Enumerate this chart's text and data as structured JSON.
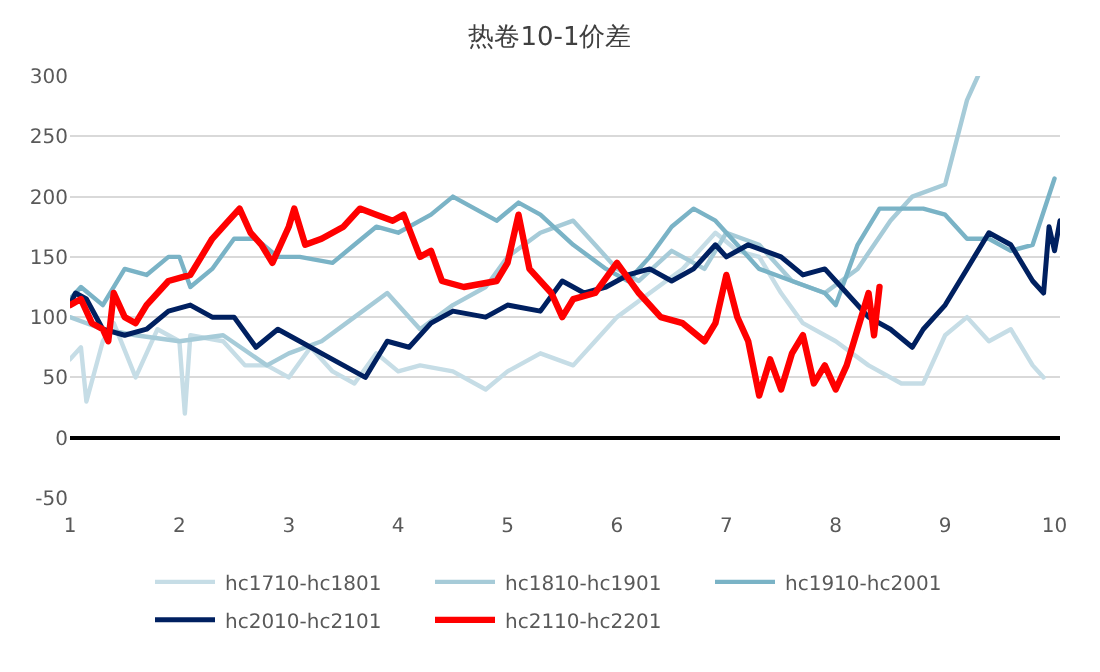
{
  "chart_data": {
    "type": "line",
    "title": "热卷10-1价差",
    "xlim": [
      1,
      10.05
    ],
    "xticks": [
      1,
      2,
      3,
      4,
      5,
      6,
      7,
      8,
      9,
      10
    ],
    "ylim": [
      -50,
      300
    ],
    "yticks": [
      -50,
      0,
      50,
      100,
      150,
      200,
      250,
      300
    ],
    "grid": "y",
    "legend": "bottom",
    "marker": "none",
    "line_style": "solid",
    "series": [
      {
        "name": "hc1710-hc1801",
        "color": "#c6dde6",
        "x": [
          1.0,
          1.1,
          1.15,
          1.3,
          1.4,
          1.6,
          1.8,
          2.0,
          2.05,
          2.1,
          2.4,
          2.6,
          2.8,
          3.0,
          3.2,
          3.4,
          3.6,
          3.8,
          4.0,
          4.2,
          4.5,
          4.8,
          5.0,
          5.3,
          5.6,
          5.8,
          6.0,
          6.3,
          6.6,
          6.9,
          7.1,
          7.3,
          7.5,
          7.7,
          8.0,
          8.3,
          8.6,
          8.8,
          9.0,
          9.2,
          9.4,
          9.6,
          9.8,
          9.9
        ],
        "values": [
          65,
          75,
          30,
          80,
          95,
          50,
          90,
          80,
          20,
          85,
          80,
          60,
          60,
          50,
          75,
          55,
          45,
          70,
          55,
          60,
          55,
          40,
          55,
          70,
          60,
          80,
          100,
          120,
          140,
          170,
          155,
          150,
          120,
          95,
          80,
          60,
          45,
          45,
          85,
          100,
          80,
          90,
          60,
          50
        ]
      },
      {
        "name": "hc1810-hc1901",
        "color": "#a6cbd8",
        "x": [
          1.0,
          1.3,
          1.6,
          2.0,
          2.4,
          2.8,
          3.0,
          3.3,
          3.6,
          3.9,
          4.2,
          4.5,
          4.8,
          5.0,
          5.3,
          5.6,
          5.8,
          6.0,
          6.2,
          6.5,
          6.8,
          7.0,
          7.3,
          7.6,
          7.9,
          8.2,
          8.5,
          8.7,
          9.0,
          9.2,
          9.3
        ],
        "values": [
          100,
          90,
          85,
          80,
          85,
          60,
          70,
          80,
          100,
          120,
          90,
          110,
          125,
          150,
          170,
          180,
          160,
          140,
          130,
          155,
          140,
          170,
          160,
          130,
          120,
          140,
          180,
          200,
          210,
          280,
          300
        ]
      },
      {
        "name": "hc1910-hc2001",
        "color": "#7ab3c6",
        "x": [
          1.0,
          1.1,
          1.3,
          1.5,
          1.7,
          1.9,
          2.0,
          2.1,
          2.3,
          2.5,
          2.7,
          2.9,
          3.1,
          3.4,
          3.6,
          3.8,
          4.0,
          4.3,
          4.5,
          4.7,
          4.9,
          5.1,
          5.3,
          5.6,
          5.9,
          6.1,
          6.3,
          6.5,
          6.7,
          6.9,
          7.1,
          7.3,
          7.6,
          7.9,
          8.0,
          8.2,
          8.4,
          8.6,
          8.8,
          9.0,
          9.2,
          9.4,
          9.6,
          9.8,
          10.0
        ],
        "values": [
          115,
          125,
          110,
          140,
          135,
          150,
          150,
          125,
          140,
          165,
          165,
          150,
          150,
          145,
          160,
          175,
          170,
          185,
          200,
          190,
          180,
          195,
          185,
          160,
          140,
          130,
          150,
          175,
          190,
          180,
          160,
          140,
          130,
          120,
          110,
          160,
          190,
          190,
          190,
          185,
          165,
          165,
          155,
          160,
          215
        ]
      },
      {
        "name": "hc2010-hc2101",
        "color": "#002060",
        "x": [
          1.0,
          1.05,
          1.15,
          1.3,
          1.5,
          1.7,
          1.9,
          2.1,
          2.3,
          2.5,
          2.7,
          2.9,
          3.1,
          3.3,
          3.5,
          3.7,
          3.9,
          4.1,
          4.3,
          4.5,
          4.8,
          5.0,
          5.3,
          5.5,
          5.7,
          5.9,
          6.1,
          6.3,
          6.5,
          6.7,
          6.9,
          7.0,
          7.2,
          7.5,
          7.7,
          7.9,
          8.1,
          8.3,
          8.5,
          8.7,
          8.8,
          9.0,
          9.2,
          9.4,
          9.6,
          9.8,
          9.9,
          9.95,
          10.0,
          10.05
        ],
        "values": [
          110,
          120,
          115,
          90,
          85,
          90,
          105,
          110,
          100,
          100,
          75,
          90,
          80,
          70,
          60,
          50,
          80,
          75,
          95,
          105,
          100,
          110,
          105,
          130,
          120,
          125,
          135,
          140,
          130,
          140,
          160,
          150,
          160,
          150,
          135,
          140,
          120,
          100,
          90,
          75,
          90,
          110,
          140,
          170,
          160,
          130,
          120,
          175,
          155,
          180
        ]
      },
      {
        "name": "hc2110-hc2201",
        "color": "#ff0000",
        "x": [
          1.0,
          1.1,
          1.2,
          1.3,
          1.35,
          1.4,
          1.5,
          1.6,
          1.7,
          1.9,
          2.1,
          2.3,
          2.45,
          2.55,
          2.65,
          2.75,
          2.85,
          3.0,
          3.05,
          3.15,
          3.3,
          3.5,
          3.65,
          3.8,
          3.95,
          4.05,
          4.2,
          4.3,
          4.4,
          4.6,
          4.9,
          5.0,
          5.1,
          5.2,
          5.4,
          5.5,
          5.6,
          5.8,
          6.0,
          6.2,
          6.4,
          6.6,
          6.8,
          6.9,
          7.0,
          7.1,
          7.2,
          7.3,
          7.4,
          7.5,
          7.6,
          7.7,
          7.8,
          7.9,
          8.0,
          8.1,
          8.2,
          8.3,
          8.35,
          8.4
        ],
        "values": [
          110,
          115,
          95,
          90,
          80,
          120,
          100,
          95,
          110,
          130,
          135,
          165,
          180,
          190,
          170,
          160,
          145,
          175,
          190,
          160,
          165,
          175,
          190,
          185,
          180,
          185,
          150,
          155,
          130,
          125,
          130,
          145,
          185,
          140,
          120,
          100,
          115,
          120,
          145,
          120,
          100,
          95,
          80,
          95,
          135,
          100,
          80,
          35,
          65,
          40,
          70,
          85,
          45,
          60,
          40,
          60,
          90,
          120,
          85,
          125
        ]
      }
    ]
  }
}
